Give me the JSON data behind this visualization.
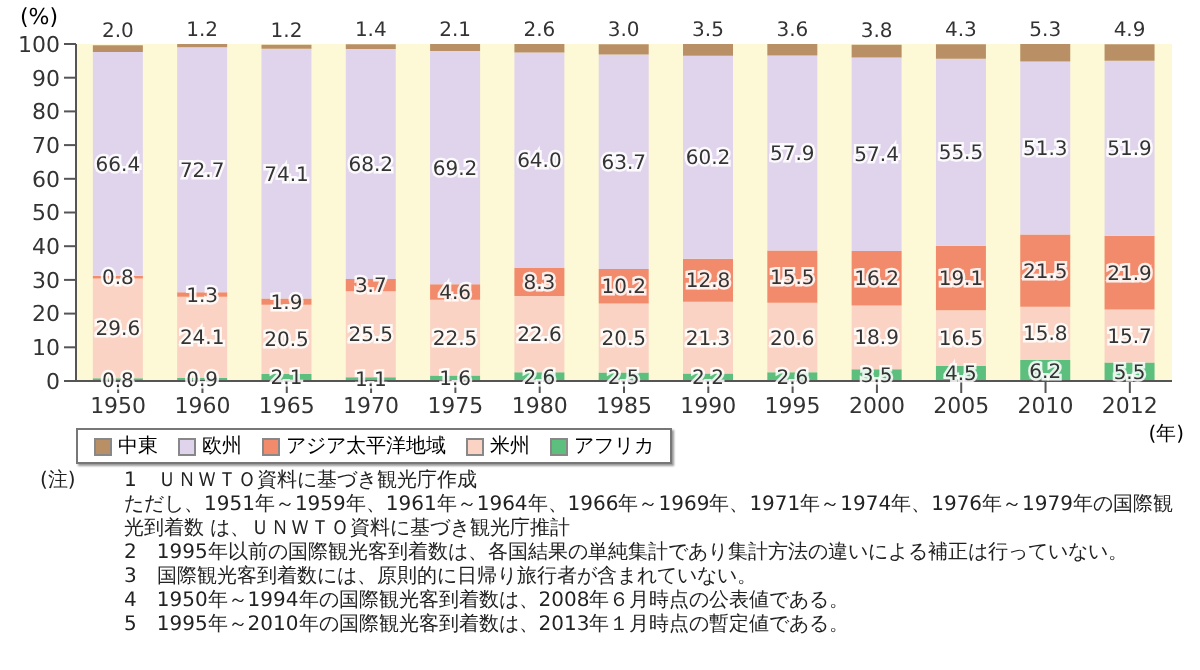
{
  "chart_data": {
    "type": "bar",
    "stacked": true,
    "ylabel": "(%)",
    "xlabel": "(年)",
    "categories": [
      "1950",
      "1960",
      "1965",
      "1970",
      "1975",
      "1980",
      "1985",
      "1990",
      "1995",
      "2000",
      "2005",
      "2010",
      "2012"
    ],
    "series": [
      {
        "name": "アフリカ",
        "color": "#5cbf7e",
        "values": [
          0.8,
          0.9,
          2.1,
          1.1,
          1.6,
          2.6,
          2.5,
          2.2,
          2.6,
          3.5,
          4.5,
          6.2,
          5.5
        ],
        "value_labels": [
          "0.8",
          "0.9",
          "2.1",
          "1.1",
          "1.6",
          "2.6",
          "2.5",
          "2.2",
          "2.6",
          "3.5",
          "4.5",
          "6.2",
          "5.5"
        ]
      },
      {
        "name": "米州",
        "color": "#fad3c4",
        "values": [
          29.6,
          24.1,
          20.5,
          25.5,
          22.5,
          22.6,
          20.5,
          21.3,
          20.6,
          18.9,
          16.5,
          15.8,
          15.7
        ],
        "value_labels": [
          "29.6",
          "24.1",
          "20.5",
          "25.5",
          "22.5",
          "22.6",
          "20.5",
          "21.3",
          "20.6",
          "18.9",
          "16.5",
          "15.8",
          "15.7"
        ]
      },
      {
        "name": "アジア太平洋地域",
        "color": "#f28a6c",
        "values": [
          0.8,
          1.3,
          1.9,
          3.7,
          4.6,
          8.3,
          10.2,
          12.8,
          15.5,
          16.2,
          19.1,
          21.5,
          21.9
        ],
        "value_labels": [
          "0.8",
          "1.3",
          "1.9",
          "3.7",
          "4.6",
          "8.3",
          "10.2",
          "12.8",
          "15.5",
          "16.2",
          "19.1",
          "21.5",
          "21.9"
        ]
      },
      {
        "name": "欧州",
        "color": "#e0d4ec",
        "values": [
          66.4,
          72.7,
          74.1,
          68.2,
          69.2,
          64.0,
          63.7,
          60.2,
          57.9,
          57.4,
          55.5,
          51.3,
          51.9
        ],
        "value_labels": [
          "66.4",
          "72.7",
          "74.1",
          "68.2",
          "69.2",
          "64.0",
          "63.7",
          "60.2",
          "57.9",
          "57.4",
          "55.5",
          "51.3",
          "51.9"
        ]
      },
      {
        "name": "中東",
        "color": "#b99066",
        "values": [
          2.0,
          1.2,
          1.2,
          1.4,
          2.1,
          2.6,
          3.0,
          3.5,
          3.6,
          3.8,
          4.3,
          5.3,
          4.9
        ],
        "value_labels": [
          "2.0",
          "1.2",
          "1.2",
          "1.4",
          "2.1",
          "2.6",
          "3.0",
          "3.5",
          "3.6",
          "3.8",
          "4.3",
          "5.3",
          "4.9"
        ]
      }
    ],
    "ylim": [
      0,
      100
    ],
    "yticks": [
      0,
      10,
      20,
      30,
      40,
      50,
      60,
      70,
      80,
      90,
      100
    ],
    "grid": false,
    "legend": "bottom",
    "annotations": [
      "(注)",
      "1　ＵＮＷＴＯ資料に基づき観光庁作成",
      "ただし、1951年～1959年、1961年～1964年、1966年～1969年、1971年～1974年、1976年～1979年の国際観光到着数 は、ＵＮＷＴＯ資料に基づき観光庁推計",
      "2　1995年以前の国際観光客到着数は、各国結果の単純集計であり集計方法の違いによる補正は行っていない。",
      "3　国際観光客到着数には、原則的に日帰り旅行者が含まれていない。",
      "4　1950年～1994年の国際観光客到着数は、2008年６月時点の公表値である。",
      "5　1995年～2010年の国際観光客到着数は、2013年１月時点の暫定値である。"
    ]
  }
}
